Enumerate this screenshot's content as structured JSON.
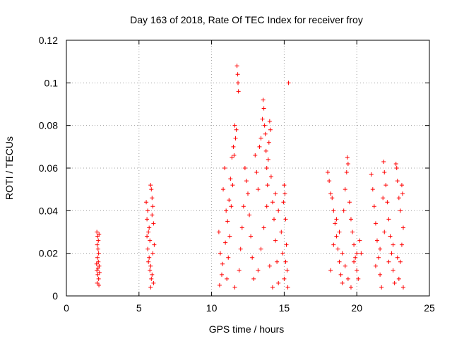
{
  "chart_data": {
    "type": "scatter",
    "title": "Day 163 of 2018, Rate Of TEC Index for receiver froy",
    "xlabel": "GPS time / hours",
    "ylabel": "ROTI / TECUs",
    "xlim": [
      0,
      25
    ],
    "ylim": [
      0,
      0.12
    ],
    "xticks": [
      0,
      5,
      10,
      15,
      20,
      25
    ],
    "xtick_labels": [
      "0",
      "5",
      "10",
      "15",
      "20",
      "25"
    ],
    "yticks": [
      0,
      0.02,
      0.04,
      0.06,
      0.08,
      0.1,
      0.12
    ],
    "ytick_labels": [
      "0",
      "0.02",
      "0.04",
      "0.06",
      "0.08",
      "0.1",
      "0.12"
    ],
    "grid": true,
    "marker": "+",
    "color": "#ff0000",
    "series": [
      {
        "name": "ROTI",
        "points": [
          [
            2.1,
            0.03
          ],
          [
            2.15,
            0.028
          ],
          [
            2.2,
            0.026
          ],
          [
            2.25,
            0.029
          ],
          [
            2.12,
            0.024
          ],
          [
            2.18,
            0.022
          ],
          [
            2.22,
            0.02
          ],
          [
            2.14,
            0.018
          ],
          [
            2.2,
            0.016
          ],
          [
            2.26,
            0.014
          ],
          [
            2.1,
            0.012
          ],
          [
            2.16,
            0.01
          ],
          [
            2.22,
            0.008
          ],
          [
            2.12,
            0.006
          ],
          [
            2.24,
            0.005
          ],
          [
            2.18,
            0.013
          ],
          [
            2.28,
            0.011
          ],
          [
            2.08,
            0.015
          ],
          [
            5.5,
            0.044
          ],
          [
            5.6,
            0.04
          ],
          [
            5.55,
            0.036
          ],
          [
            5.7,
            0.032
          ],
          [
            5.8,
            0.052
          ],
          [
            5.85,
            0.05
          ],
          [
            5.9,
            0.046
          ],
          [
            5.95,
            0.042
          ],
          [
            5.65,
            0.03
          ],
          [
            5.75,
            0.026
          ],
          [
            5.6,
            0.022
          ],
          [
            5.7,
            0.018
          ],
          [
            5.8,
            0.014
          ],
          [
            5.9,
            0.01
          ],
          [
            6.0,
            0.006
          ],
          [
            5.85,
            0.008
          ],
          [
            5.75,
            0.012
          ],
          [
            5.65,
            0.016
          ],
          [
            5.95,
            0.02
          ],
          [
            6.05,
            0.024
          ],
          [
            5.55,
            0.028
          ],
          [
            6.0,
            0.034
          ],
          [
            5.9,
            0.038
          ],
          [
            5.8,
            0.004
          ],
          [
            10.5,
            0.03
          ],
          [
            10.6,
            0.02
          ],
          [
            10.7,
            0.01
          ],
          [
            10.8,
            0.05
          ],
          [
            10.9,
            0.06
          ],
          [
            11.0,
            0.04
          ],
          [
            10.55,
            0.005
          ],
          [
            10.75,
            0.015
          ],
          [
            10.95,
            0.025
          ],
          [
            11.1,
            0.035
          ],
          [
            11.2,
            0.045
          ],
          [
            11.3,
            0.055
          ],
          [
            11.4,
            0.065
          ],
          [
            11.5,
            0.07
          ],
          [
            11.6,
            0.08
          ],
          [
            11.7,
            0.078
          ],
          [
            11.75,
            0.108
          ],
          [
            11.8,
            0.104
          ],
          [
            11.82,
            0.1
          ],
          [
            11.85,
            0.096
          ],
          [
            11.65,
            0.074
          ],
          [
            11.55,
            0.066
          ],
          [
            11.45,
            0.052
          ],
          [
            11.35,
            0.042
          ],
          [
            11.25,
            0.028
          ],
          [
            11.15,
            0.018
          ],
          [
            11.05,
            0.008
          ],
          [
            11.6,
            0.004
          ],
          [
            11.9,
            0.012
          ],
          [
            12.0,
            0.022
          ],
          [
            12.1,
            0.032
          ],
          [
            12.2,
            0.042
          ],
          [
            12.3,
            0.06
          ],
          [
            12.4,
            0.054
          ],
          [
            12.5,
            0.048
          ],
          [
            12.6,
            0.038
          ],
          [
            12.7,
            0.028
          ],
          [
            12.8,
            0.018
          ],
          [
            12.9,
            0.008
          ],
          [
            13.0,
            0.066
          ],
          [
            13.1,
            0.058
          ],
          [
            13.2,
            0.05
          ],
          [
            13.3,
            0.07
          ],
          [
            13.4,
            0.074
          ],
          [
            13.5,
            0.083
          ],
          [
            13.55,
            0.092
          ],
          [
            13.6,
            0.088
          ],
          [
            13.65,
            0.08
          ],
          [
            13.7,
            0.076
          ],
          [
            13.75,
            0.068
          ],
          [
            13.8,
            0.06
          ],
          [
            13.85,
            0.052
          ],
          [
            13.9,
            0.064
          ],
          [
            13.95,
            0.072
          ],
          [
            14.0,
            0.082
          ],
          [
            14.05,
            0.078
          ],
          [
            14.1,
            0.056
          ],
          [
            14.2,
            0.044
          ],
          [
            14.3,
            0.036
          ],
          [
            14.4,
            0.026
          ],
          [
            14.5,
            0.016
          ],
          [
            14.6,
            0.006
          ],
          [
            13.2,
            0.012
          ],
          [
            13.4,
            0.022
          ],
          [
            13.6,
            0.032
          ],
          [
            13.8,
            0.042
          ],
          [
            14.0,
            0.014
          ],
          [
            14.2,
            0.004
          ],
          [
            14.4,
            0.048
          ],
          [
            14.6,
            0.04
          ],
          [
            14.8,
            0.03
          ],
          [
            14.9,
            0.02
          ],
          [
            15.0,
            0.052
          ],
          [
            15.05,
            0.048
          ],
          [
            15.1,
            0.036
          ],
          [
            15.15,
            0.024
          ],
          [
            15.2,
            0.012
          ],
          [
            15.25,
            0.004
          ],
          [
            15.3,
            0.1
          ],
          [
            14.95,
            0.044
          ],
          [
            15.1,
            0.016
          ],
          [
            15.0,
            0.008
          ],
          [
            18.0,
            0.058
          ],
          [
            18.1,
            0.054
          ],
          [
            18.2,
            0.048
          ],
          [
            18.3,
            0.046
          ],
          [
            18.4,
            0.04
          ],
          [
            18.5,
            0.034
          ],
          [
            18.6,
            0.028
          ],
          [
            18.7,
            0.022
          ],
          [
            18.8,
            0.016
          ],
          [
            18.9,
            0.01
          ],
          [
            19.0,
            0.006
          ],
          [
            19.1,
            0.04
          ],
          [
            19.2,
            0.05
          ],
          [
            19.3,
            0.058
          ],
          [
            19.35,
            0.065
          ],
          [
            19.4,
            0.062
          ],
          [
            19.5,
            0.044
          ],
          [
            19.6,
            0.036
          ],
          [
            19.7,
            0.03
          ],
          [
            19.8,
            0.024
          ],
          [
            19.9,
            0.018
          ],
          [
            20.0,
            0.012
          ],
          [
            20.1,
            0.008
          ],
          [
            20.2,
            0.026
          ],
          [
            20.3,
            0.02
          ],
          [
            18.2,
            0.012
          ],
          [
            18.4,
            0.024
          ],
          [
            18.6,
            0.036
          ],
          [
            18.8,
            0.03
          ],
          [
            19.0,
            0.02
          ],
          [
            19.2,
            0.014
          ],
          [
            19.4,
            0.008
          ],
          [
            19.6,
            0.004
          ],
          [
            19.8,
            0.016
          ],
          [
            20.0,
            0.02
          ],
          [
            21.0,
            0.057
          ],
          [
            21.1,
            0.05
          ],
          [
            21.2,
            0.042
          ],
          [
            21.3,
            0.034
          ],
          [
            21.4,
            0.026
          ],
          [
            21.5,
            0.018
          ],
          [
            21.6,
            0.01
          ],
          [
            21.7,
            0.004
          ],
          [
            21.8,
            0.046
          ],
          [
            21.85,
            0.063
          ],
          [
            21.9,
            0.058
          ],
          [
            22.0,
            0.052
          ],
          [
            22.1,
            0.044
          ],
          [
            22.2,
            0.036
          ],
          [
            22.3,
            0.028
          ],
          [
            22.4,
            0.02
          ],
          [
            22.5,
            0.012
          ],
          [
            22.6,
            0.006
          ],
          [
            22.7,
            0.062
          ],
          [
            22.75,
            0.06
          ],
          [
            22.8,
            0.054
          ],
          [
            22.9,
            0.046
          ],
          [
            23.0,
            0.04
          ],
          [
            23.1,
            0.052
          ],
          [
            23.15,
            0.048
          ],
          [
            23.2,
            0.032
          ],
          [
            23.1,
            0.024
          ],
          [
            23.0,
            0.016
          ],
          [
            22.9,
            0.008
          ],
          [
            23.2,
            0.004
          ],
          [
            21.3,
            0.014
          ],
          [
            21.6,
            0.022
          ],
          [
            21.9,
            0.03
          ],
          [
            22.2,
            0.016
          ],
          [
            22.5,
            0.024
          ],
          [
            22.8,
            0.018
          ]
        ]
      }
    ]
  }
}
